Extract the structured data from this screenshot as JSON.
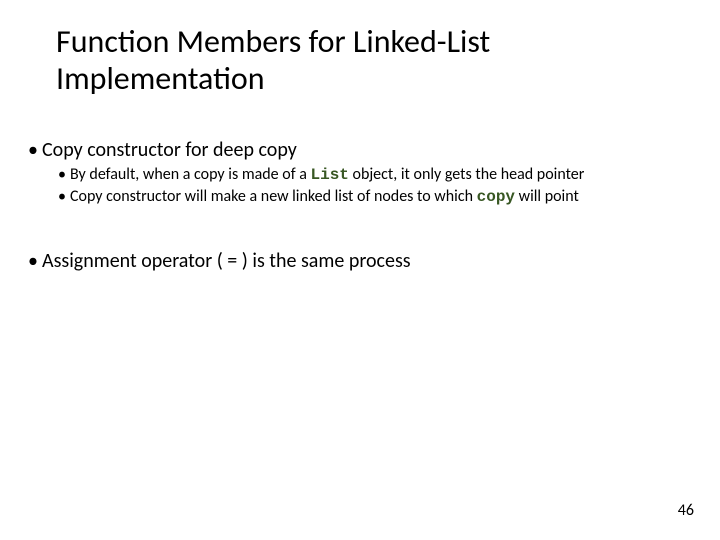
{
  "slide": {
    "title": "Function Members for Linked-List Implementation",
    "bullets": [
      {
        "text": "Copy constructor for deep copy",
        "children": [
          {
            "pre": "By default, when a copy is made of a ",
            "code": "List",
            "post": " object, it only gets the head pointer"
          },
          {
            "pre": "Copy constructor will make a new linked list of nodes to which ",
            "code": "copy",
            "post": " will point"
          }
        ]
      },
      {
        "text": "Assignment operator ( = ) is the same process",
        "children": []
      }
    ],
    "page_number": "46",
    "colors": {
      "background": "#ffffff",
      "text": "#000000",
      "code": "#385723"
    },
    "fonts": {
      "title_size_pt": 32,
      "body_size_pt": 20,
      "sub_size_pt": 16,
      "code_family": "Courier New"
    }
  }
}
